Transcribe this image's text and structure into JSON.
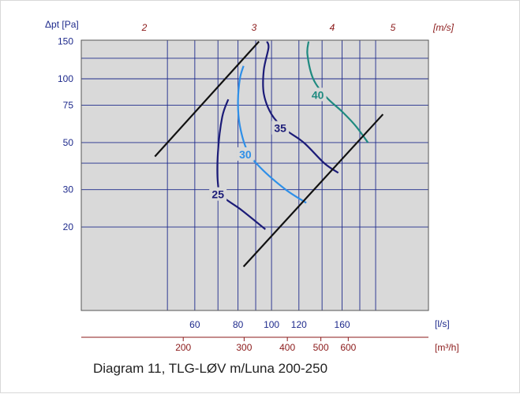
{
  "chart_data": {
    "type": "line",
    "y_axis": {
      "label": "Δpt [Pa]",
      "scale": "log",
      "ticks": [
        20,
        30,
        50,
        75,
        100,
        150
      ]
    },
    "x_axis_ls": {
      "unit": "[l/s]",
      "scale": "log",
      "ticks": [
        60,
        80,
        100,
        120,
        160
      ]
    },
    "x_axis_m3h": {
      "unit": "[m³/h]",
      "ticks": [
        200,
        300,
        400,
        500,
        600
      ]
    },
    "x_axis_ms": {
      "unit": "[m/s]",
      "ticks": [
        2,
        3,
        4,
        5
      ]
    },
    "grid": true,
    "boundary_lines": [
      {
        "points": [
          [
            46,
            43
          ],
          [
            92,
            150
          ]
        ]
      },
      {
        "points": [
          [
            83,
            13
          ],
          [
            210,
            68
          ]
        ]
      }
    ],
    "series": [
      {
        "name": "25",
        "points": [
          [
            75,
            80
          ],
          [
            72,
            66
          ],
          [
            70,
            45
          ],
          [
            70,
            32
          ],
          [
            72,
            28
          ],
          [
            82,
            24
          ],
          [
            96,
            19.5
          ]
        ]
      },
      {
        "name": "30",
        "points": [
          [
            83,
            115
          ],
          [
            81,
            100
          ],
          [
            80,
            77
          ],
          [
            81,
            60
          ],
          [
            85,
            46
          ],
          [
            93,
            38
          ],
          [
            110,
            30
          ],
          [
            126,
            26
          ]
        ]
      },
      {
        "name": "35",
        "points": [
          [
            97,
            150
          ],
          [
            98,
            140
          ],
          [
            95,
            110
          ],
          [
            95,
            85
          ],
          [
            100,
            68
          ],
          [
            109,
            58
          ],
          [
            124,
            50
          ],
          [
            142,
            40
          ],
          [
            156,
            36
          ]
        ]
      },
      {
        "name": "40",
        "points": [
          [
            128,
            150
          ],
          [
            127,
            130
          ],
          [
            132,
            100
          ],
          [
            144,
            82
          ],
          [
            160,
            70
          ],
          [
            175,
            60
          ],
          [
            190,
            50
          ]
        ]
      }
    ]
  },
  "caption": "Diagram 11, TLG-LØV m/Luna 200-250",
  "colors": {
    "plot_bg": "#d9d9d9",
    "grid": "#1e2a8c",
    "axis_text": "#1e2a8c",
    "secondary_axis": "#8b1a1a",
    "boundary": "#111111",
    "series": {
      "25": "#1c1c78",
      "30": "#2e8fe8",
      "35": "#1c1c78",
      "40": "#1f8a80"
    }
  }
}
